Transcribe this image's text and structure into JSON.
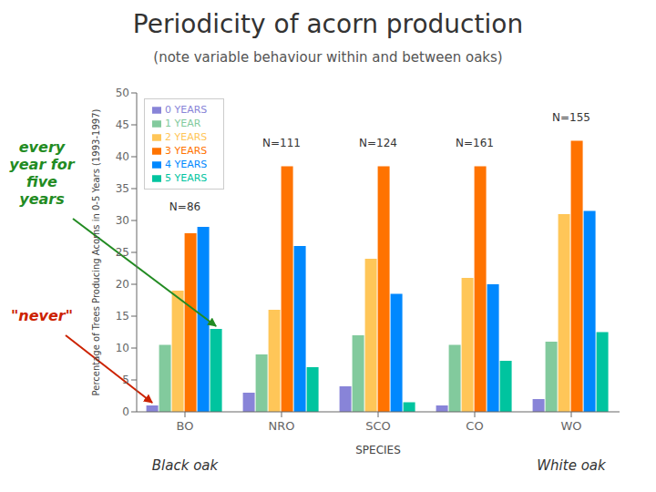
{
  "chart_data": {
    "type": "bar",
    "title": "Periodicity of acorn production",
    "subtitle": "(note variable behaviour within and between oaks)",
    "categories": [
      "BO",
      "NRO",
      "SCO",
      "CO",
      "WO"
    ],
    "series": [
      {
        "name": "0 YEARS",
        "color": "#8884d8",
        "values": [
          1,
          3,
          4,
          1,
          2
        ]
      },
      {
        "name": "1 YEAR",
        "color": "#82ca9d",
        "values": [
          10.5,
          9,
          12,
          10.5,
          11
        ]
      },
      {
        "name": "2 YEARS",
        "color": "#ffc658",
        "values": [
          19,
          16,
          24,
          21,
          31
        ]
      },
      {
        "name": "3 YEARS",
        "color": "#ff7300",
        "values": [
          28,
          38.5,
          38.5,
          38.5,
          42.5
        ]
      },
      {
        "name": "4 YEARS",
        "color": "#0088fe",
        "values": [
          29,
          26,
          18.5,
          20,
          31.5
        ]
      },
      {
        "name": "5 YEARS",
        "color": "#00c49f",
        "values": [
          13,
          7,
          1.5,
          8,
          12.5
        ]
      }
    ],
    "xlabel": "SPECIES",
    "ylabel": "Percentage of Trees Producing Acorns in 0-5 Years (1993-1997)",
    "ylim": [
      0,
      50
    ],
    "yticks": [
      0,
      5,
      10,
      15,
      20,
      25,
      30,
      35,
      40,
      45,
      50
    ],
    "grid": false,
    "legend": "upper left",
    "annotations": [
      {
        "text": "N=86",
        "category": "BO",
        "y": 31
      },
      {
        "text": "N=111",
        "category": "NRO",
        "y": 41
      },
      {
        "text": "N=124",
        "category": "SCO",
        "y": 41
      },
      {
        "text": "N=161",
        "category": "CO",
        "y": 41
      },
      {
        "text": "N=155",
        "category": "WO",
        "y": 45
      },
      {
        "text": "Black oak",
        "category": "BO"
      },
      {
        "text": "White oak",
        "category": "WO"
      },
      {
        "text": "every\nyear for\nfive\nyears",
        "color": "#228B22",
        "arrow_to": {
          "category": "BO",
          "series": "5 YEARS"
        }
      },
      {
        "text": "\"never\"",
        "color": "#CC2200",
        "arrow_to": {
          "category": "BO",
          "series": "0 YEARS"
        }
      }
    ]
  }
}
